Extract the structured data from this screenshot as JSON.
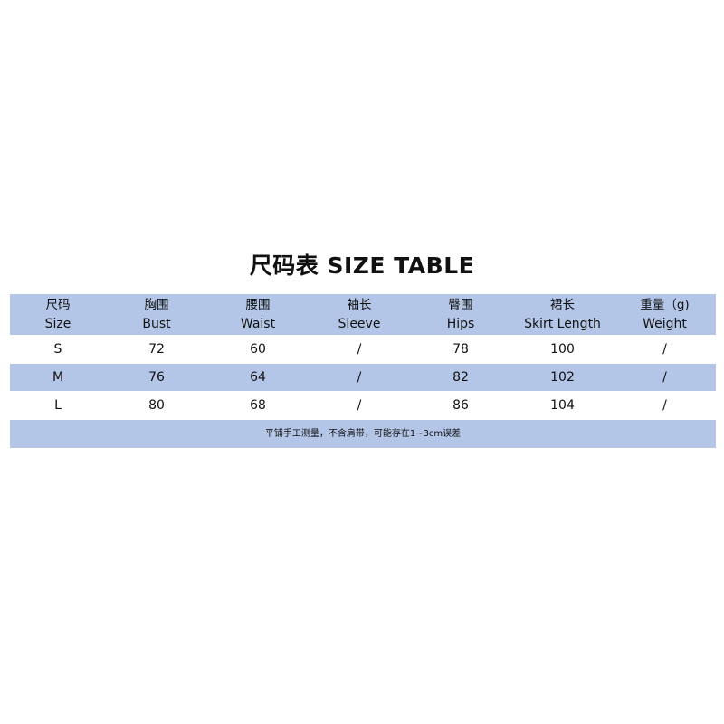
{
  "title": "尺码表  SIZE TABLE",
  "colors": {
    "band": "#b4c6e7",
    "row": "#ffffff"
  },
  "table": {
    "headers": [
      {
        "zh": "尺码",
        "en": "Size"
      },
      {
        "zh": "胸围",
        "en": "Bust"
      },
      {
        "zh": "腰围",
        "en": "Waist"
      },
      {
        "zh": "袖长",
        "en": "Sleeve"
      },
      {
        "zh": "臀围",
        "en": "Hips"
      },
      {
        "zh": "裙长",
        "en": "Skirt Length"
      },
      {
        "zh": "重量（g)",
        "en": "Weight"
      }
    ],
    "rows": [
      [
        "S",
        "72",
        "60",
        "/",
        "78",
        "100",
        "/"
      ],
      [
        "M",
        "76",
        "64",
        "/",
        "82",
        "102",
        "/"
      ],
      [
        "L",
        "80",
        "68",
        "/",
        "86",
        "104",
        "/"
      ]
    ],
    "note": "平铺手工测量，不含肩带，可能存在1~3cm误差"
  }
}
